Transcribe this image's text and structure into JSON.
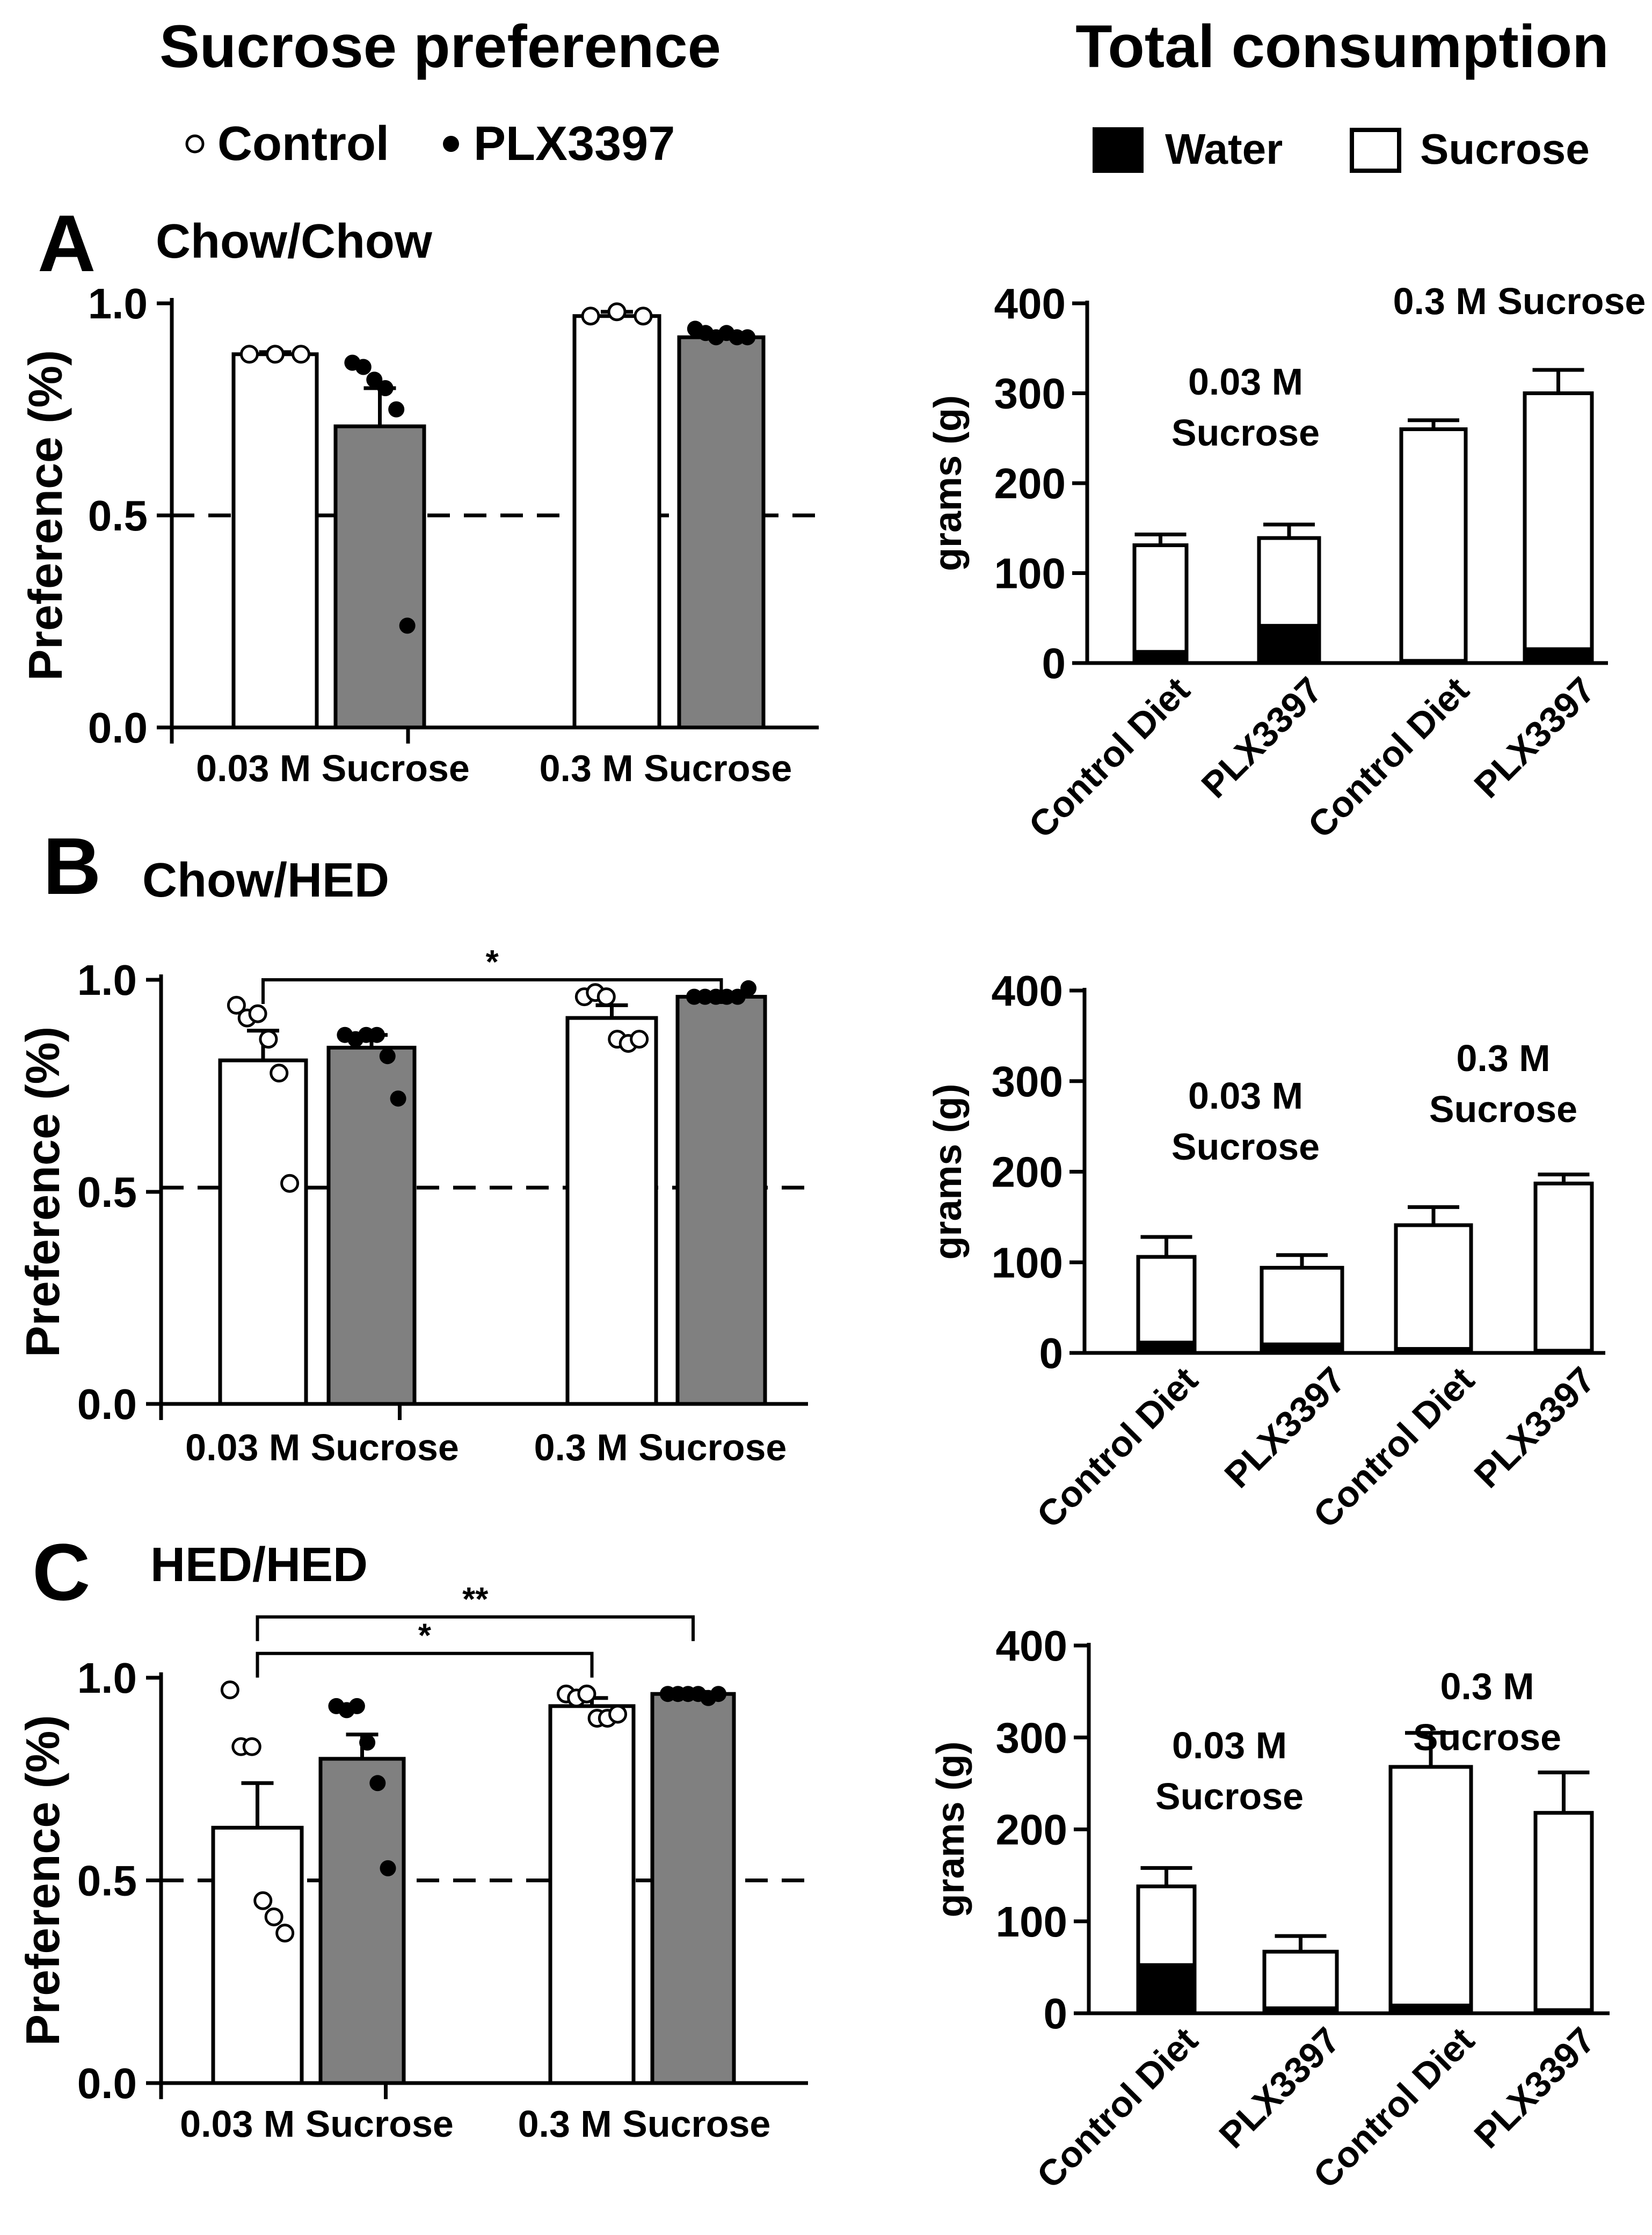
{
  "headers": {
    "left_title": "Sucrose preference",
    "right_title": "Total consumption",
    "legend_left": [
      {
        "label": "Control",
        "marker": "open-circle"
      },
      {
        "label": "PLX3397",
        "marker": "filled-circle"
      }
    ],
    "legend_right": [
      {
        "label": "Water",
        "marker": "filled-square"
      },
      {
        "label": "Sucrose",
        "marker": "open-square"
      }
    ]
  },
  "colors": {
    "control_bar": "#ffffff",
    "plx_bar": "#808080",
    "axis": "#000000",
    "water": "#000000"
  },
  "chart_data": [
    {
      "panel": "A",
      "panel_title": "Chow/Chow",
      "kind": "preference",
      "type": "bar",
      "ylabel": "Preference (%)",
      "ylim": [
        0,
        1
      ],
      "yticks": [
        "0.0",
        "0.5",
        "1.0"
      ],
      "reference_line": 0.5,
      "groups": [
        "0.03 M Sucrose",
        "0.3 M Sucrose"
      ],
      "series": [
        {
          "name": "Control",
          "values": [
            0.88,
            0.97
          ],
          "sem": [
            0.005,
            0.01
          ],
          "points": [
            [
              0.88,
              0.88,
              0.88
            ],
            [
              0.97,
              0.98,
              0.97
            ]
          ]
        },
        {
          "name": "PLX3397",
          "values": [
            0.71,
            0.92
          ],
          "sem": [
            0.09,
            0.01
          ],
          "points": [
            [
              0.86,
              0.85,
              0.82,
              0.8,
              0.75,
              0.24
            ],
            [
              0.94,
              0.93,
              0.92,
              0.93,
              0.92,
              0.92
            ]
          ]
        }
      ],
      "significance": []
    },
    {
      "panel": "A",
      "kind": "consumption",
      "type": "stacked-bar",
      "ylabel": "grams (g)",
      "ylim": [
        0,
        400
      ],
      "yticks": [
        "0",
        "100",
        "200",
        "300",
        "400"
      ],
      "categories": [
        "Control Diet",
        "PLX3397",
        "Control Diet",
        "PLX3397"
      ],
      "water": [
        13,
        42,
        3,
        16
      ],
      "total": [
        131,
        139,
        260,
        300
      ],
      "sem": [
        12,
        15,
        10,
        26
      ],
      "annotations": [
        "0.03 M\nSucrose",
        "0.3 M Sucrose"
      ]
    },
    {
      "panel": "B",
      "panel_title": "Chow/HED",
      "kind": "preference",
      "type": "bar",
      "ylabel": "Preference (%)",
      "ylim": [
        0,
        1
      ],
      "yticks": [
        "0.0",
        "0.5",
        "1.0"
      ],
      "reference_line": 0.51,
      "groups": [
        "0.03 M Sucrose",
        "0.3 M Sucrose"
      ],
      "series": [
        {
          "name": "Control",
          "values": [
            0.81,
            0.91
          ],
          "sem": [
            0.07,
            0.03
          ],
          "points": [
            [
              0.94,
              0.91,
              0.92,
              0.86,
              0.78,
              0.52
            ],
            [
              0.96,
              0.97,
              0.96,
              0.86,
              0.85,
              0.86
            ]
          ]
        },
        {
          "name": "PLX3397",
          "values": [
            0.84,
            0.96
          ],
          "sem": [
            0.03,
            0.005
          ],
          "points": [
            [
              0.87,
              0.86,
              0.87,
              0.87,
              0.82,
              0.72
            ],
            [
              0.96,
              0.96,
              0.96,
              0.96,
              0.96,
              0.98
            ]
          ]
        }
      ],
      "significance": [
        {
          "from": [
            0,
            "Control"
          ],
          "to": [
            1,
            "PLX3397"
          ],
          "label": "*",
          "y": 1.0
        }
      ]
    },
    {
      "panel": "B",
      "kind": "consumption",
      "type": "stacked-bar",
      "ylabel": "grams (g)",
      "ylim": [
        0,
        400
      ],
      "yticks": [
        "0",
        "100",
        "200",
        "300",
        "400"
      ],
      "categories": [
        "Control Diet",
        "PLX3397",
        "Control Diet",
        "PLX3397"
      ],
      "water": [
        12,
        10,
        5,
        3
      ],
      "total": [
        106,
        94,
        141,
        187
      ],
      "sem": [
        22,
        14,
        20,
        10
      ],
      "annotations": [
        "0.03 M\nSucrose",
        "0.3 M\nSucrose"
      ]
    },
    {
      "panel": "C",
      "panel_title": "HED/HED",
      "kind": "preference",
      "type": "bar",
      "ylabel": "Preference (%)",
      "ylim": [
        0,
        1
      ],
      "yticks": [
        "0.0",
        "0.5",
        "1.0"
      ],
      "reference_line": 0.5,
      "groups": [
        "0.03 M Sucrose",
        "0.3 M Sucrose"
      ],
      "series": [
        {
          "name": "Control",
          "values": [
            0.63,
            0.93
          ],
          "sem": [
            0.11,
            0.02
          ],
          "points": [
            [
              0.97,
              0.83,
              0.83,
              0.45,
              0.41,
              0.37
            ],
            [
              0.96,
              0.95,
              0.96,
              0.9,
              0.9,
              0.91
            ]
          ]
        },
        {
          "name": "PLX3397",
          "values": [
            0.8,
            0.96
          ],
          "sem": [
            0.06,
            0.005
          ],
          "points": [
            [
              0.93,
              0.92,
              0.93,
              0.84,
              0.74,
              0.53
            ],
            [
              0.96,
              0.96,
              0.96,
              0.96,
              0.95,
              0.96
            ]
          ]
        }
      ],
      "significance": [
        {
          "from": [
            0,
            "Control"
          ],
          "to": [
            1,
            "Control"
          ],
          "label": "*",
          "y": 1.06
        },
        {
          "from": [
            0,
            "Control"
          ],
          "to": [
            1,
            "PLX3397"
          ],
          "label": "**",
          "y": 1.15
        }
      ]
    },
    {
      "panel": "C",
      "kind": "consumption",
      "type": "stacked-bar",
      "ylabel": "grams (g)",
      "ylim": [
        0,
        400
      ],
      "yticks": [
        "0",
        "100",
        "200",
        "300",
        "400"
      ],
      "categories": [
        "Control Diet",
        "PLX3397",
        "Control Diet",
        "PLX3397"
      ],
      "water": [
        53,
        6,
        9,
        4
      ],
      "total": [
        138,
        67,
        268,
        218
      ],
      "sem": [
        20,
        17,
        37,
        44
      ],
      "annotations": [
        "0.03 M\nSucrose",
        "0.3 M\nSucrose"
      ]
    }
  ]
}
